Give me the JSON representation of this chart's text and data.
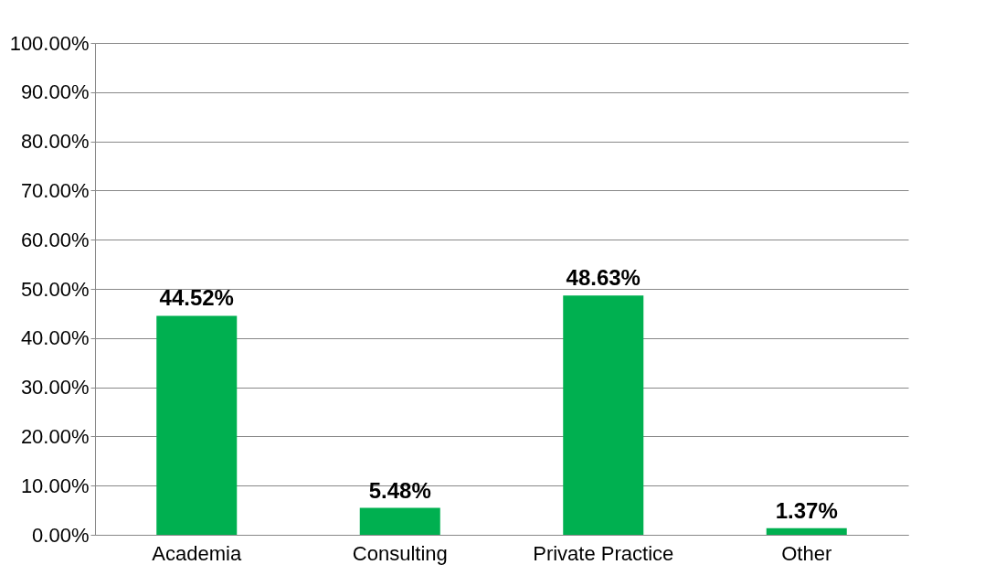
{
  "chart_data": {
    "type": "bar",
    "categories": [
      "Academia",
      "Consulting",
      "Private Practice",
      "Other"
    ],
    "values": [
      44.52,
      5.48,
      48.63,
      1.37
    ],
    "color": "#00b050",
    "value_labels": [
      "44.52%",
      "5.48%",
      "48.63%",
      "1.37%"
    ],
    "ylim": [
      0,
      100
    ],
    "yticks": [
      {
        "value": 0,
        "label": "0.00%"
      },
      {
        "value": 10,
        "label": "10.00%"
      },
      {
        "value": 20,
        "label": "20.00%"
      },
      {
        "value": 30,
        "label": "30.00%"
      },
      {
        "value": 40,
        "label": "40.00%"
      },
      {
        "value": 50,
        "label": "50.00%"
      },
      {
        "value": 60,
        "label": "60.00%"
      },
      {
        "value": 70,
        "label": "70.00%"
      },
      {
        "value": 80,
        "label": "80.00%"
      },
      {
        "value": 90,
        "label": "90.00%"
      },
      {
        "value": 100,
        "label": "100.00%"
      }
    ],
    "grid": "y"
  }
}
